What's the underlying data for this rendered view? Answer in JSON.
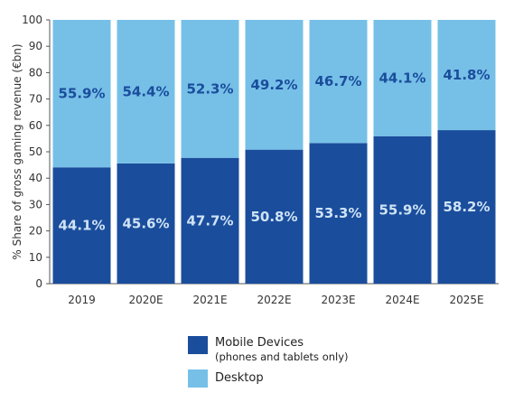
{
  "chart_data": {
    "type": "bar",
    "stacked": true,
    "categories": [
      "2019",
      "2020E",
      "2021E",
      "2022E",
      "2023E",
      "2024E",
      "2025E"
    ],
    "series": [
      {
        "name": "Mobile Devices",
        "name_note": "(phones and tablets only)",
        "values": [
          44.1,
          45.6,
          47.7,
          50.8,
          53.3,
          55.9,
          58.2
        ],
        "color": "#1a4d9c",
        "label_color": "#cfe3f5"
      },
      {
        "name": "Desktop",
        "values": [
          55.9,
          54.4,
          52.3,
          49.2,
          46.7,
          44.1,
          41.8
        ],
        "color": "#76c0e8",
        "label_color": "#1a4d9c"
      }
    ],
    "data_labels": [
      [
        "44.1%",
        "45.6%",
        "47.7%",
        "50.8%",
        "53.3%",
        "55.9%",
        "58.2%"
      ],
      [
        "55.9%",
        "54.4%",
        "52.3%",
        "49.2%",
        "46.7%",
        "44.1%",
        "41.8%"
      ]
    ],
    "ylabel": "% Share of gross gaming revenue (€bn)",
    "xlabel": "",
    "ylim": [
      0,
      100
    ],
    "yticks": [
      "0",
      "10",
      "20",
      "30",
      "40",
      "50",
      "60",
      "70",
      "80",
      "90",
      "100"
    ],
    "grid": false,
    "legend_position": "bottom-center"
  }
}
